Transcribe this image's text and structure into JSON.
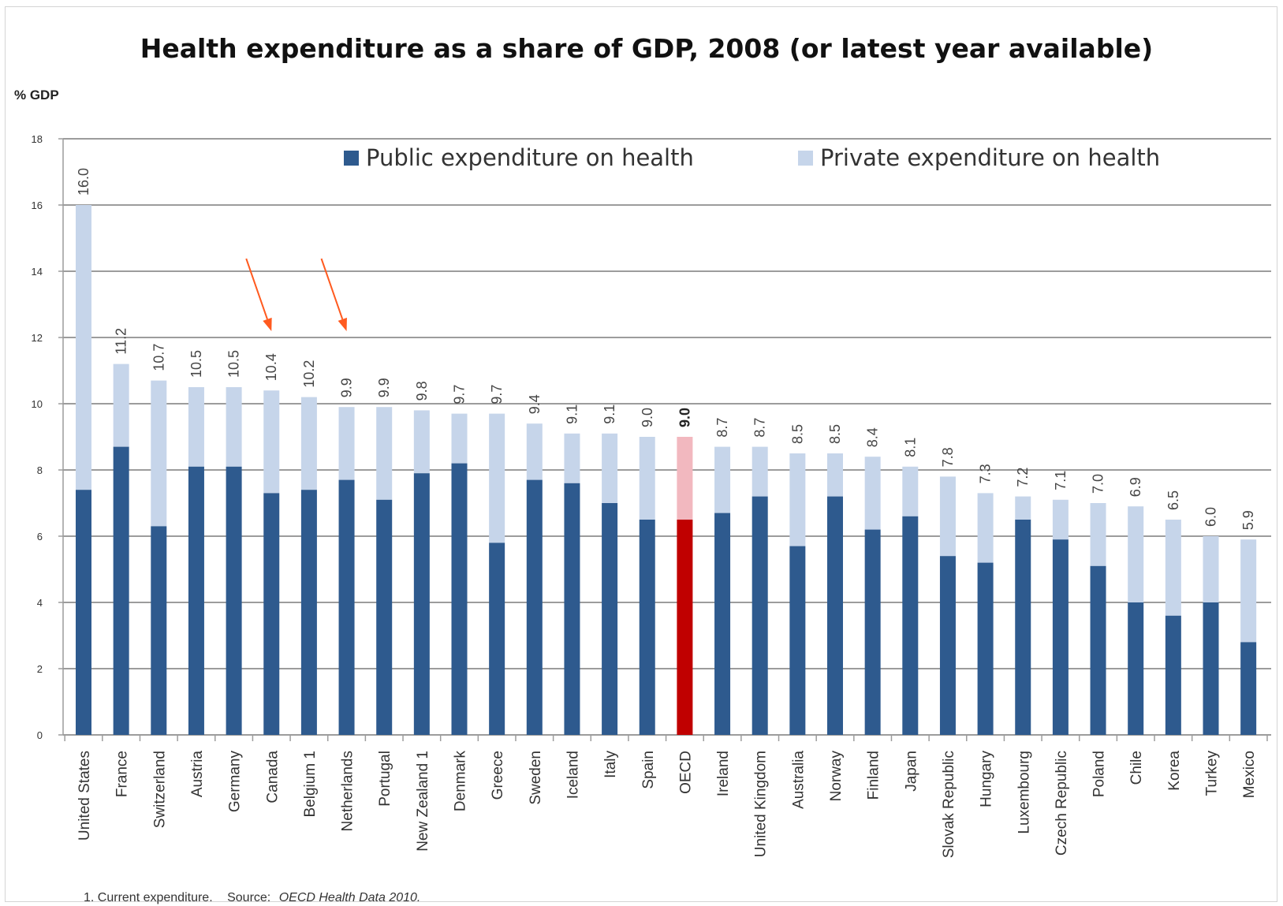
{
  "colors": {
    "public": "#2e5a8e",
    "private": "#c6d5ea",
    "oecd_public": "#c00000",
    "oecd_private": "#f2b8bf",
    "grid": "#9c9c9c",
    "arrow": "#ff5a1f"
  },
  "chart_data": {
    "type": "bar",
    "stacked": true,
    "title": "Health expenditure as a share of GDP, 2008 (or latest year available)",
    "ylabel": "% GDP",
    "ylim": [
      0,
      18
    ],
    "yticks": [
      "0",
      "2",
      "4",
      "6",
      "8",
      "10",
      "12",
      "14",
      "16",
      "18"
    ],
    "grid": true,
    "legend_position": "top",
    "categories": [
      "United States",
      "France",
      "Switzerland",
      "Austria",
      "Germany",
      "Canada",
      "Belgium 1",
      "Netherlands",
      "Portugal",
      "New Zealand 1",
      "Denmark",
      "Greece",
      "Sweden",
      "Iceland",
      "Italy",
      "Spain",
      "OECD",
      "Ireland",
      "United Kingdom",
      "Australia",
      "Norway",
      "Finland",
      "Japan",
      "Slovak Republic",
      "Hungary",
      "Luxembourg",
      "Czech Republic",
      "Poland",
      "Chile",
      "Korea",
      "Turkey",
      "Mexico"
    ],
    "series": [
      {
        "name": "Public expenditure  on health",
        "values": [
          7.4,
          8.7,
          6.3,
          8.1,
          8.1,
          7.3,
          7.4,
          7.7,
          7.1,
          7.9,
          8.2,
          5.8,
          7.7,
          7.6,
          7.0,
          6.5,
          6.5,
          6.7,
          7.2,
          5.7,
          7.2,
          6.2,
          6.6,
          5.4,
          5.2,
          6.5,
          5.9,
          5.1,
          4.0,
          3.6,
          4.0,
          2.8
        ]
      },
      {
        "name": "Private expenditure  on health",
        "values": [
          8.6,
          2.5,
          4.4,
          2.4,
          2.4,
          3.1,
          2.8,
          2.2,
          2.8,
          1.9,
          1.5,
          3.9,
          1.7,
          1.5,
          2.1,
          2.5,
          2.5,
          2.0,
          1.5,
          2.8,
          1.3,
          2.2,
          1.5,
          2.4,
          2.1,
          0.7,
          1.2,
          1.9,
          2.9,
          2.9,
          2.0,
          3.1
        ]
      }
    ],
    "data_labels": [
      "16.0",
      "11.2",
      "10.7",
      "10.5",
      "10.5",
      "10.4",
      "10.2",
      "9.9",
      "9.9",
      "9.8",
      "9.7",
      "9.7",
      "9.4",
      "9.1",
      "9.1",
      "9.0",
      "9.0",
      "8.7",
      "8.7",
      "8.5",
      "8.5",
      "8.4",
      "8.1",
      "7.8",
      "7.3",
      "7.2",
      "7.1",
      "7.0",
      "6.9",
      "6.5",
      "6.0",
      "5.9"
    ],
    "highlight_category": "OECD",
    "annotations": {
      "arrows_pointing_to": [
        "Canada",
        "Netherlands"
      ]
    }
  },
  "footnote": {
    "note": "1. Current expenditure.",
    "source_label": "Source:",
    "source_title": "OECD Health Data 2010."
  }
}
